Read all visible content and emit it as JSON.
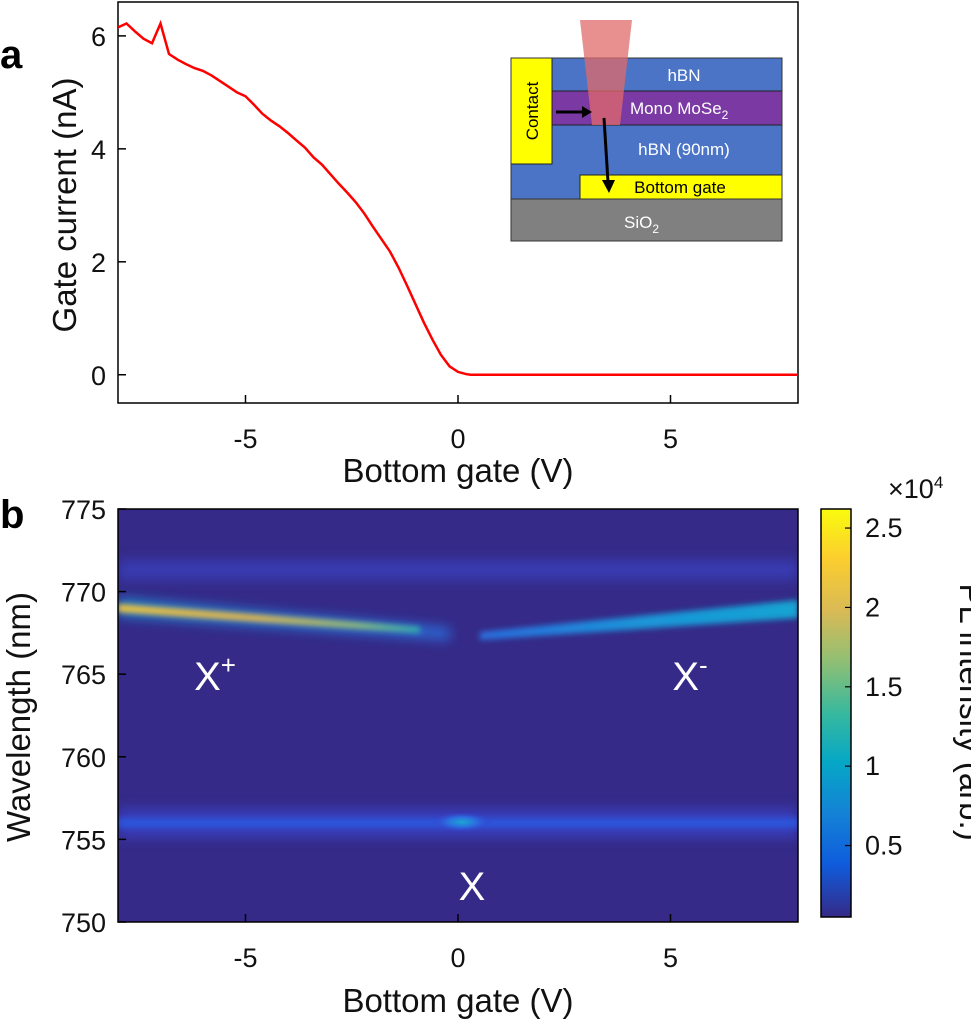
{
  "panel_labels": {
    "a": "a",
    "b": "b"
  },
  "inset": {
    "layers": {
      "top_hbn": "hBN",
      "mono": "Mono MoSe",
      "mono_sub": "2",
      "hbn_90": "hBN (90nm)",
      "bottom_gate": "Bottom gate",
      "sio2": "SiO",
      "sio2_sub": "2",
      "contact": "Contact"
    },
    "colors": {
      "hbn": "#4b74c6",
      "mose2": "#7b3aa3",
      "gate": "#ffff00",
      "sio2": "#808080",
      "laser": "#e06a6a"
    }
  },
  "annotations": {
    "x_plus": "X",
    "x_plus_sup": "+",
    "x_minus": "X",
    "x_minus_sup": "-",
    "x_neutral": "X"
  },
  "colorbar": {
    "multiplier": "×10",
    "multiplier_exp": "4",
    "label": "PL intensity (arb.)",
    "ticks": [
      "0.5",
      "1",
      "1.5",
      "2",
      "2.5"
    ],
    "tick_values": [
      0.5,
      1,
      1.5,
      2,
      2.5
    ],
    "range": [
      0.05,
      2.62
    ]
  },
  "chart_data": [
    {
      "type": "line",
      "xlabel": "Bottom gate (V)",
      "ylabel": "Gate current (nA)",
      "xlim": [
        -8,
        8
      ],
      "ylim": [
        -0.5,
        6.6
      ],
      "xticks": [
        "-5",
        "0",
        "5"
      ],
      "xtick_values": [
        -5,
        0,
        5
      ],
      "yticks": [
        "0",
        "2",
        "4",
        "6"
      ],
      "ytick_values": [
        0,
        2,
        4,
        6
      ],
      "color": "#ff0000",
      "series": [
        {
          "x": [
            -8,
            -7.8,
            -7.6,
            -7.4,
            -7.2,
            -7.0,
            -6.8,
            -6.6,
            -6.4,
            -6.2,
            -6.0,
            -5.8,
            -5.6,
            -5.4,
            -5.2,
            -5.0,
            -4.8,
            -4.6,
            -4.4,
            -4.2,
            -4.0,
            -3.8,
            -3.6,
            -3.4,
            -3.2,
            -3.0,
            -2.8,
            -2.6,
            -2.4,
            -2.2,
            -2.0,
            -1.8,
            -1.6,
            -1.4,
            -1.2,
            -1.0,
            -0.8,
            -0.6,
            -0.4,
            -0.2,
            0.0,
            0.2,
            0.3,
            0.5,
            1,
            2,
            3,
            4,
            5,
            6,
            7,
            8
          ],
          "y": [
            6.15,
            6.22,
            6.08,
            5.95,
            5.87,
            6.22,
            5.68,
            5.58,
            5.5,
            5.43,
            5.38,
            5.3,
            5.2,
            5.1,
            5.0,
            4.93,
            4.78,
            4.62,
            4.5,
            4.4,
            4.28,
            4.15,
            4.02,
            3.85,
            3.72,
            3.55,
            3.38,
            3.22,
            3.05,
            2.85,
            2.62,
            2.4,
            2.18,
            1.9,
            1.58,
            1.25,
            0.92,
            0.62,
            0.35,
            0.15,
            0.05,
            0.01,
            0.0,
            0.0,
            0.0,
            0.0,
            0.0,
            0.0,
            0.0,
            0.0,
            0.0,
            0.0
          ]
        }
      ]
    },
    {
      "type": "heatmap",
      "xlabel": "Bottom gate (V)",
      "ylabel": "Wavelength (nm)",
      "xlim": [
        -8,
        8
      ],
      "ylim": [
        750,
        775
      ],
      "xticks": [
        "-5",
        "0",
        "5"
      ],
      "xtick_values": [
        -5,
        0,
        5
      ],
      "yticks": [
        "750",
        "755",
        "760",
        "765",
        "770",
        "775"
      ],
      "ytick_values": [
        750,
        755,
        760,
        765,
        770,
        775
      ],
      "colormap": "parula",
      "features": [
        {
          "name": "X+",
          "x": [
            -8,
            -1.5
          ],
          "wavelength": [
            768.9,
            767.6
          ],
          "peak_intensity": [
            2.15,
            1.6
          ]
        },
        {
          "name": "X-",
          "x": [
            1.0,
            8
          ],
          "wavelength": [
            767.8,
            769.1
          ],
          "peak_intensity": [
            0.55,
            0.75
          ]
        },
        {
          "name": "X",
          "x": [
            -8,
            8
          ],
          "wavelength": 756.0,
          "peak_intensity": [
            0.3,
            0.8
          ]
        }
      ]
    }
  ]
}
